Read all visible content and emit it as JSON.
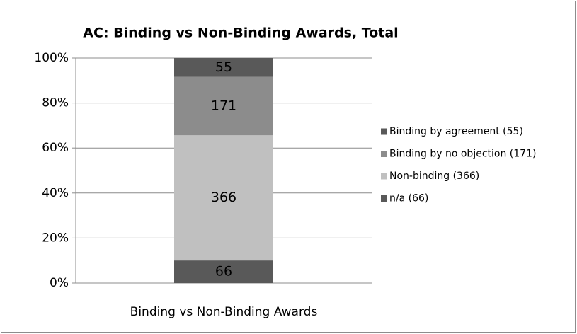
{
  "chart_data": {
    "type": "percent_stacked_bar",
    "title": "AC: Binding vs Non-Binding Awards, Total",
    "categories": [
      "Binding vs Non-Binding Awards"
    ],
    "series": [
      {
        "name": "n/a (66)",
        "color": "#595959",
        "label_color": "#000000",
        "values": [
          66
        ]
      },
      {
        "name": "Non-binding (366)",
        "color": "#c0c0c0",
        "label_color": "#000000",
        "values": [
          366
        ]
      },
      {
        "name": "Binding by no objection (171)",
        "color": "#8c8c8c",
        "label_color": "#ffffff",
        "values": [
          171
        ]
      },
      {
        "name": "Binding by agreement (55)",
        "color": "#595959",
        "label_color": "#ffffff",
        "values": [
          55
        ]
      }
    ],
    "ylim": [
      0,
      100
    ],
    "yticks": [
      {
        "value": 0,
        "label": "0%"
      },
      {
        "value": 20,
        "label": "20%"
      },
      {
        "value": 40,
        "label": "40%"
      },
      {
        "value": 60,
        "label": "60%"
      },
      {
        "value": 80,
        "label": "80%"
      },
      {
        "value": 100,
        "label": "100%"
      }
    ],
    "grid": true,
    "legend": "right"
  }
}
